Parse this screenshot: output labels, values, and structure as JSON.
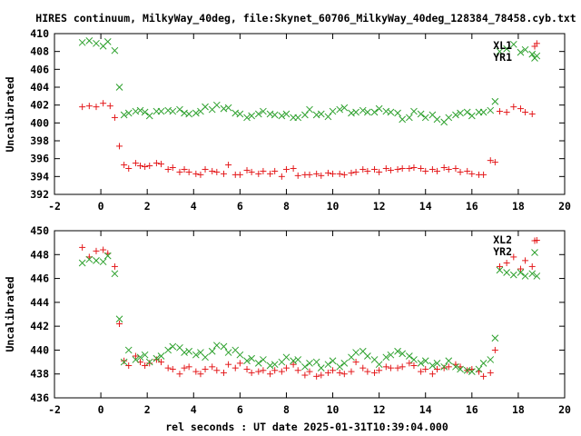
{
  "chart_data": [
    {
      "type": "scatter",
      "title": "HIRES continuum, MilkyWay_40deg, file:Skynet_60706_MilkyWay_40deg_128384_78458.cyb.txt",
      "ylabel": "Uncalibrated",
      "xlabel": "",
      "xlim": [
        -2,
        20
      ],
      "ylim": [
        392,
        410
      ],
      "xticks": [
        "-2",
        "0",
        "2",
        "4",
        "6",
        "8",
        "10",
        "12",
        "14",
        "16",
        "18",
        "20"
      ],
      "yticks": [
        "392",
        "394",
        "396",
        "398",
        "400",
        "402",
        "404",
        "406",
        "408",
        "410"
      ],
      "legend_position": "top-right",
      "series": [
        {
          "name": "XL1",
          "marker": "plus",
          "color": "#e41a1c",
          "x": [
            -0.8,
            -0.5,
            -0.2,
            0.1,
            0.4,
            0.6,
            0.8,
            1.0,
            1.2,
            1.5,
            1.7,
            1.9,
            2.1,
            2.4,
            2.6,
            2.9,
            3.1,
            3.4,
            3.6,
            3.8,
            4.1,
            4.3,
            4.5,
            4.8,
            5.0,
            5.3,
            5.5,
            5.8,
            6.0,
            6.3,
            6.5,
            6.8,
            7.0,
            7.3,
            7.5,
            7.8,
            8.0,
            8.3,
            8.5,
            8.8,
            9.0,
            9.3,
            9.5,
            9.8,
            10.0,
            10.3,
            10.5,
            10.8,
            11.0,
            11.3,
            11.5,
            11.8,
            12.0,
            12.3,
            12.5,
            12.8,
            13.0,
            13.3,
            13.5,
            13.8,
            14.0,
            14.3,
            14.5,
            14.8,
            15.0,
            15.3,
            15.5,
            15.8,
            16.0,
            16.3,
            16.5,
            16.8,
            17.0,
            17.2,
            17.5,
            17.8,
            18.1,
            18.3,
            18.6,
            18.8
          ],
          "y": [
            401.8,
            401.9,
            401.8,
            402.2,
            401.9,
            400.6,
            397.4,
            395.3,
            394.9,
            395.5,
            395.2,
            395.1,
            395.2,
            395.5,
            395.4,
            394.8,
            395.0,
            394.5,
            394.8,
            394.5,
            394.3,
            394.2,
            394.8,
            394.6,
            394.5,
            394.3,
            395.3,
            394.2,
            394.2,
            394.7,
            394.5,
            394.3,
            394.6,
            394.3,
            394.6,
            394.0,
            394.8,
            394.9,
            394.1,
            394.2,
            394.2,
            394.3,
            394.1,
            394.4,
            394.3,
            394.3,
            394.2,
            394.4,
            394.5,
            394.8,
            394.6,
            394.8,
            394.5,
            394.9,
            394.7,
            394.8,
            394.9,
            394.9,
            395.0,
            394.9,
            394.6,
            394.8,
            394.6,
            395.0,
            394.8,
            394.9,
            394.5,
            394.6,
            394.3,
            394.2,
            394.2,
            395.8,
            395.6,
            401.3,
            401.2,
            401.8,
            401.6,
            401.2,
            401.0,
            408.9
          ],
          "hidden_note": ""
        },
        {
          "name": "YR1",
          "marker": "cross",
          "color": "#2ca02c",
          "x": [
            -0.8,
            -0.5,
            -0.2,
            0.1,
            0.3,
            0.6,
            0.8,
            1.0,
            1.2,
            1.5,
            1.7,
            1.9,
            2.1,
            2.4,
            2.6,
            2.9,
            3.1,
            3.4,
            3.6,
            3.8,
            4.1,
            4.3,
            4.5,
            4.8,
            5.0,
            5.3,
            5.5,
            5.8,
            6.0,
            6.3,
            6.5,
            6.8,
            7.0,
            7.3,
            7.5,
            7.8,
            8.0,
            8.3,
            8.5,
            8.8,
            9.0,
            9.3,
            9.5,
            9.8,
            10.0,
            10.3,
            10.5,
            10.8,
            11.0,
            11.3,
            11.5,
            11.8,
            12.0,
            12.3,
            12.5,
            12.8,
            13.0,
            13.3,
            13.5,
            13.8,
            14.0,
            14.3,
            14.5,
            14.8,
            15.0,
            15.3,
            15.5,
            15.8,
            16.0,
            16.3,
            16.5,
            16.8,
            17.0,
            17.2,
            17.5,
            17.8,
            18.1,
            18.3,
            18.6,
            18.8
          ],
          "y": [
            409.0,
            409.2,
            408.9,
            408.6,
            409.1,
            408.1,
            404.0,
            400.9,
            401.1,
            401.3,
            401.4,
            401.2,
            400.8,
            401.3,
            401.3,
            401.4,
            401.3,
            401.5,
            401.1,
            401.0,
            401.1,
            401.3,
            401.8,
            401.5,
            402.0,
            401.6,
            401.7,
            401.1,
            401.0,
            400.6,
            400.8,
            401.0,
            401.3,
            401.0,
            400.9,
            400.8,
            401.0,
            400.6,
            400.6,
            400.9,
            401.5,
            400.9,
            401.0,
            400.7,
            401.3,
            401.5,
            401.7,
            401.1,
            401.2,
            401.4,
            401.2,
            401.2,
            401.6,
            401.3,
            401.2,
            401.1,
            400.4,
            400.6,
            401.3,
            401.0,
            400.6,
            400.9,
            400.4,
            400.1,
            400.6,
            400.9,
            401.1,
            401.2,
            400.8,
            401.2,
            401.2,
            401.4,
            402.4,
            408.0,
            408.3,
            408.8,
            407.9,
            408.2,
            407.7,
            407.5
          ]
        }
      ]
    },
    {
      "type": "scatter",
      "title": "",
      "ylabel": "Uncalibrated",
      "xlabel": "rel seconds : UT date 2025-01-31T10:39:04.000",
      "xlim": [
        -2,
        20
      ],
      "ylim": [
        436,
        450
      ],
      "xticks": [
        "-2",
        "0",
        "2",
        "4",
        "6",
        "8",
        "10",
        "12",
        "14",
        "16",
        "18",
        "20"
      ],
      "yticks": [
        "436",
        "438",
        "440",
        "442",
        "444",
        "446",
        "448",
        "450"
      ],
      "legend_position": "top-right",
      "series": [
        {
          "name": "XL2",
          "marker": "plus",
          "color": "#e41a1c",
          "x": [
            -0.8,
            -0.5,
            -0.2,
            0.1,
            0.3,
            0.6,
            0.8,
            1.0,
            1.2,
            1.5,
            1.7,
            1.9,
            2.1,
            2.4,
            2.6,
            2.9,
            3.1,
            3.4,
            3.6,
            3.8,
            4.1,
            4.3,
            4.5,
            4.8,
            5.0,
            5.3,
            5.5,
            5.8,
            6.0,
            6.3,
            6.5,
            6.8,
            7.0,
            7.3,
            7.5,
            7.8,
            8.0,
            8.3,
            8.5,
            8.8,
            9.0,
            9.3,
            9.5,
            9.8,
            10.0,
            10.3,
            10.5,
            10.8,
            11.0,
            11.3,
            11.5,
            11.8,
            12.0,
            12.3,
            12.5,
            12.8,
            13.0,
            13.3,
            13.5,
            13.8,
            14.0,
            14.3,
            14.5,
            14.8,
            15.0,
            15.3,
            15.5,
            15.8,
            16.0,
            16.3,
            16.5,
            16.8,
            17.0,
            17.2,
            17.5,
            17.8,
            18.1,
            18.3,
            18.6,
            18.8
          ],
          "y": [
            448.6,
            447.8,
            448.3,
            448.4,
            448.1,
            447.0,
            442.2,
            439.1,
            438.7,
            439.5,
            439.0,
            438.7,
            438.9,
            439.2,
            439.0,
            438.5,
            438.4,
            438.0,
            438.5,
            438.6,
            438.2,
            438.0,
            438.4,
            438.6,
            438.3,
            438.1,
            438.8,
            438.5,
            438.9,
            438.4,
            438.1,
            438.2,
            438.3,
            438.0,
            438.3,
            438.2,
            438.5,
            438.8,
            438.3,
            437.9,
            438.2,
            437.8,
            437.9,
            438.1,
            438.3,
            438.1,
            438.0,
            438.2,
            439.0,
            438.5,
            438.2,
            438.1,
            438.3,
            438.6,
            438.5,
            438.5,
            438.6,
            438.9,
            438.7,
            438.2,
            438.4,
            438.0,
            438.4,
            438.5,
            438.6,
            438.8,
            438.6,
            438.3,
            438.4,
            438.2,
            437.8,
            438.1,
            440.0,
            447.0,
            447.3,
            447.8,
            446.8,
            447.5,
            447.0,
            449.2
          ]
        },
        {
          "name": "YR2",
          "marker": "cross",
          "color": "#2ca02c",
          "x": [
            -0.8,
            -0.5,
            -0.2,
            0.1,
            0.3,
            0.6,
            0.8,
            1.0,
            1.2,
            1.5,
            1.7,
            1.9,
            2.1,
            2.4,
            2.6,
            2.9,
            3.1,
            3.4,
            3.6,
            3.8,
            4.1,
            4.3,
            4.5,
            4.8,
            5.0,
            5.3,
            5.5,
            5.8,
            6.0,
            6.3,
            6.5,
            6.8,
            7.0,
            7.3,
            7.5,
            7.8,
            8.0,
            8.3,
            8.5,
            8.8,
            9.0,
            9.3,
            9.5,
            9.8,
            10.0,
            10.3,
            10.5,
            10.8,
            11.0,
            11.3,
            11.5,
            11.8,
            12.0,
            12.3,
            12.5,
            12.8,
            13.0,
            13.3,
            13.5,
            13.8,
            14.0,
            14.3,
            14.5,
            14.8,
            15.0,
            15.3,
            15.5,
            15.8,
            16.0,
            16.3,
            16.5,
            16.8,
            17.0,
            17.2,
            17.5,
            17.8,
            18.1,
            18.3,
            18.6,
            18.8
          ],
          "y": [
            447.3,
            447.6,
            447.5,
            447.4,
            447.9,
            446.4,
            442.6,
            439.0,
            440.0,
            439.2,
            439.4,
            439.6,
            439.0,
            439.3,
            439.5,
            440.0,
            440.3,
            440.2,
            439.8,
            439.9,
            439.6,
            439.8,
            439.4,
            439.9,
            440.4,
            440.3,
            439.8,
            440.0,
            439.6,
            439.1,
            439.3,
            438.9,
            439.2,
            438.7,
            438.8,
            439.0,
            439.4,
            439.1,
            439.2,
            438.6,
            438.9,
            439.0,
            438.5,
            438.8,
            439.1,
            438.6,
            438.9,
            439.4,
            439.8,
            439.9,
            439.5,
            439.2,
            438.8,
            439.4,
            439.6,
            439.9,
            439.7,
            439.5,
            439.2,
            438.9,
            439.1,
            438.7,
            438.9,
            438.6,
            439.1,
            438.6,
            438.4,
            438.3,
            438.2,
            438.4,
            438.9,
            439.2,
            441.0,
            446.7,
            446.5,
            446.3,
            446.5,
            446.2,
            446.4,
            446.2
          ]
        }
      ]
    }
  ]
}
